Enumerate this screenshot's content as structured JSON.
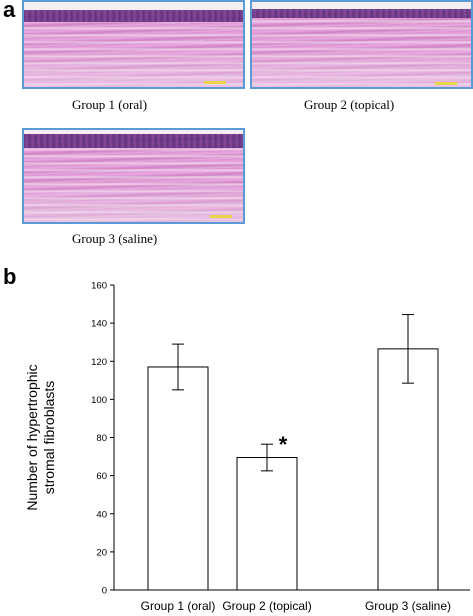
{
  "panel_a": {
    "letter": "a",
    "images": [
      {
        "caption": "Group 1 (oral)"
      },
      {
        "caption": "Group 2 (topical)"
      },
      {
        "caption": "Group 3 (saline)"
      }
    ]
  },
  "panel_b": {
    "letter": "b"
  },
  "colors": {
    "image_border": "#5b9bd5",
    "bar_fill": "#ffffff",
    "bar_stroke": "#000000"
  },
  "chart_data": {
    "type": "bar",
    "categories": [
      "Group 1 (oral)",
      "Group 2 (topical)",
      "Group 3 (saline)"
    ],
    "values": [
      117,
      69.5,
      126.5
    ],
    "error": [
      12,
      7,
      18
    ],
    "ylabel": "Number of hypertrophic stromal fibroblasts",
    "ylim": [
      0,
      160
    ],
    "yticks": [
      0,
      20,
      40,
      60,
      80,
      100,
      120,
      140,
      160
    ],
    "annotations": [
      {
        "category": "Group 2 (topical)",
        "text": "*"
      }
    ],
    "grid": false
  }
}
